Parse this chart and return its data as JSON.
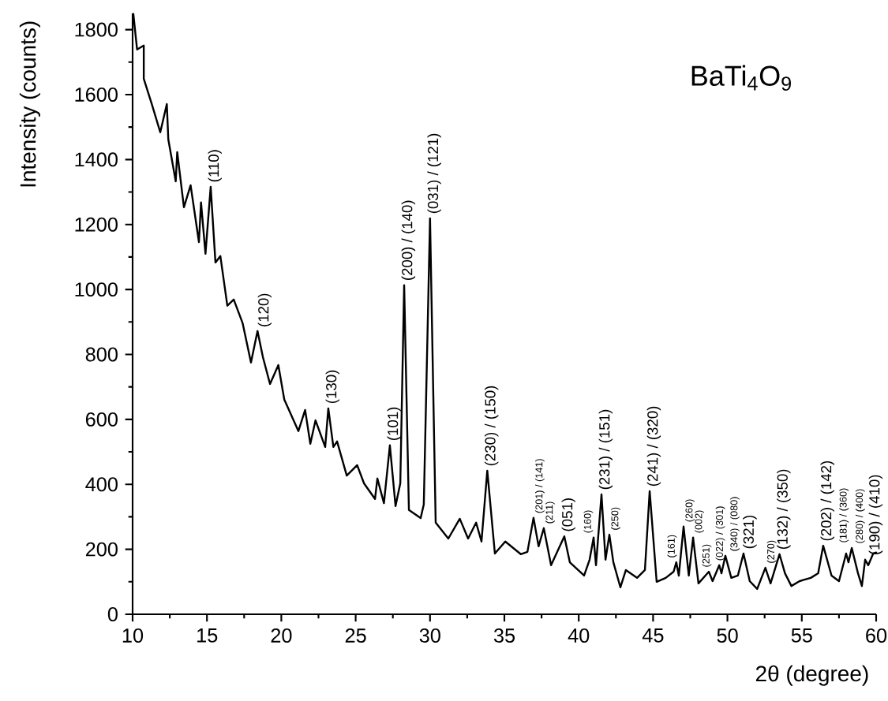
{
  "chart_data": {
    "type": "line",
    "title": "BaTi$_{4}$O$_{9}$",
    "xlabel": "2θ (degree)",
    "ylabel": "Intensity (counts)",
    "xlim": [
      10,
      60
    ],
    "xticks": [
      10,
      15,
      20,
      25,
      30,
      35,
      40,
      45,
      50,
      55,
      60
    ],
    "ylim": [
      0,
      1850
    ],
    "yticks": [
      0,
      200,
      400,
      600,
      800,
      1000,
      1200,
      1400,
      1600,
      1800
    ],
    "series": [
      {
        "color": "#000000",
        "x": [
          10.05,
          10.3,
          10.75,
          10.75,
          11.3,
          11.86,
          12.3,
          12.4,
          12.9,
          13.0,
          13.45,
          13.9,
          14.46,
          14.6,
          14.9,
          15.25,
          15.57,
          15.9,
          16.37,
          16.8,
          17.4,
          17.96,
          18.4,
          18.76,
          19.24,
          19.8,
          20.2,
          21.15,
          21.6,
          21.95,
          22.3,
          22.95,
          23.16,
          23.5,
          23.75,
          24.4,
          25.1,
          25.56,
          26.3,
          26.46,
          26.9,
          27.3,
          27.68,
          28.0,
          28.26,
          28.58,
          29.37,
          29.58,
          30.0,
          30.38,
          31.23,
          32.0,
          32.56,
          33.1,
          33.46,
          33.85,
          34.36,
          35.06,
          36.1,
          36.55,
          36.96,
          37.3,
          37.65,
          38.14,
          39.03,
          39.4,
          40.36,
          40.73,
          41.0,
          41.16,
          41.53,
          41.8,
          42.06,
          42.33,
          42.8,
          43.17,
          43.92,
          44.45,
          44.77,
          45.24,
          45.85,
          46.38,
          46.56,
          46.73,
          47.05,
          47.4,
          47.69,
          48.05,
          48.75,
          49.0,
          49.45,
          49.6,
          49.86,
          50.26,
          50.7,
          51.08,
          51.5,
          52.0,
          52.55,
          52.9,
          53.5,
          53.87,
          54.3,
          54.85,
          55.6,
          56.1,
          56.44,
          57.0,
          57.5,
          57.98,
          58.14,
          58.36,
          58.78,
          59.04,
          59.26,
          59.47,
          59.8,
          60.0
        ],
        "values": [
          1848,
          1739,
          1751,
          1649,
          1569,
          1484,
          1571,
          1462,
          1333,
          1423,
          1253,
          1321,
          1146,
          1268,
          1110,
          1316,
          1083,
          1103,
          950,
          969,
          896,
          775,
          872,
          792,
          709,
          767,
          661,
          564,
          629,
          525,
          597,
          515,
          634,
          515,
          532,
          427,
          459,
          403,
          355,
          418,
          342,
          520,
          333,
          403,
          1013,
          321,
          296,
          338,
          1219,
          282,
          233,
          294,
          233,
          282,
          224,
          442,
          187,
          224,
          185,
          192,
          297,
          209,
          265,
          151,
          240,
          160,
          119,
          168,
          236,
          151,
          369,
          168,
          245,
          160,
          83,
          136,
          112,
          136,
          379,
          100,
          112,
          131,
          160,
          119,
          270,
          119,
          236,
          95,
          131,
          102,
          151,
          126,
          180,
          112,
          119,
          187,
          102,
          78,
          143,
          95,
          185,
          126,
          87,
          102,
          112,
          126,
          211,
          119,
          102,
          187,
          160,
          204,
          126,
          87,
          168,
          151,
          187,
          190
        ]
      }
    ],
    "annotations": [
      {
        "text": "(110)",
        "x": 15.25,
        "y": 1316
      },
      {
        "text": "(120)",
        "x": 18.6,
        "y": 870
      },
      {
        "text": "(130)",
        "x": 23.16,
        "y": 634
      },
      {
        "text": "(101)",
        "x": 27.3,
        "y": 520
      },
      {
        "text": "(200) / (140)",
        "x": 28.26,
        "y": 1013
      },
      {
        "text": "(031) / (121)",
        "x": 30.0,
        "y": 1219
      },
      {
        "text": "(230) / (150)",
        "x": 33.85,
        "y": 442
      },
      {
        "text": "(201) / (141)",
        "x": 36.96,
        "y": 297
      },
      {
        "text": "(211)",
        "x": 37.65,
        "y": 265
      },
      {
        "text": "(051)",
        "x": 39.03,
        "y": 240
      },
      {
        "text": "(160)",
        "x": 41.0,
        "y": 236
      },
      {
        "text": "(231) / (151)",
        "x": 41.53,
        "y": 369
      },
      {
        "text": "(250)",
        "x": 42.06,
        "y": 245
      },
      {
        "text": "(241) / (320)",
        "x": 44.77,
        "y": 379
      },
      {
        "text": "(161)",
        "x": 46.56,
        "y": 160
      },
      {
        "text": "(260)",
        "x": 47.05,
        "y": 270
      },
      {
        "text": "(002)",
        "x": 47.69,
        "y": 236
      },
      {
        "text": "(251)",
        "x": 48.75,
        "y": 131
      },
      {
        "text": "(022) / (301)",
        "x": 49.45,
        "y": 151
      },
      {
        "text": "(340) / (080)",
        "x": 49.86,
        "y": 180
      },
      {
        "text": "(321)",
        "x": 51.08,
        "y": 187
      },
      {
        "text": "(270)",
        "x": 52.55,
        "y": 143
      },
      {
        "text": "(132) / (350)",
        "x": 53.5,
        "y": 185
      },
      {
        "text": "(202) / (142)",
        "x": 56.44,
        "y": 211
      },
      {
        "text": "(181) / (360)",
        "x": 57.98,
        "y": 187
      },
      {
        "text": "(280) / (400)",
        "x": 58.36,
        "y": 204
      },
      {
        "text": "(190) / (410)",
        "x": 59.26,
        "y": 168
      }
    ]
  }
}
